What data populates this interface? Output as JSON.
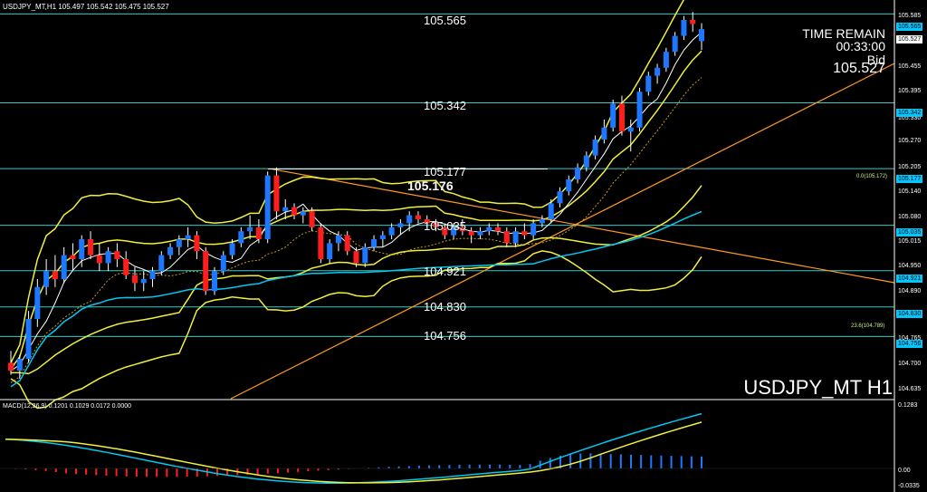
{
  "header": {
    "symbol_info": "USDJPY_MT,H1  105.497 105.542 105.475 105.527"
  },
  "timer": {
    "label": "TIME REMAIN",
    "value": "00:33:00"
  },
  "bid": {
    "label": "Bid",
    "value": "105.527"
  },
  "symbol_title": "USDJPY_MT H1",
  "macd": {
    "label": "MACD(12,26,9) 0.1201 0.1029 0.0172 0.0000",
    "axis_top": "0.1283",
    "axis_zero": "0.00",
    "axis_bottom": "-0.0335"
  },
  "levels": [
    {
      "price": 105.565,
      "label": "105.565"
    },
    {
      "price": 105.342,
      "label": "105.342"
    },
    {
      "price": 105.177,
      "label": "105.177"
    },
    {
      "price": 105.035,
      "label": "105.035"
    },
    {
      "price": 104.921,
      "label": "104.921"
    },
    {
      "price": 104.83,
      "label": "104.830"
    },
    {
      "price": 104.756,
      "label": "104.756"
    }
  ],
  "highlight_level": "105.176",
  "fibs": {
    "top": "0.0(105.172)",
    "mid": "23.6(104.789)"
  },
  "price_axis": {
    "ticks": [
      "105.585",
      "105.520",
      "105.455",
      "105.395",
      "105.330",
      "105.270",
      "105.205",
      "105.140",
      "105.080",
      "105.015",
      "104.950",
      "104.890",
      "104.765",
      "104.700",
      "104.635"
    ],
    "boxes": [
      {
        "label": "105.565",
        "kind": "level"
      },
      {
        "label": "105.527",
        "kind": "bid"
      },
      {
        "label": "105.342",
        "kind": "level"
      },
      {
        "label": "105.177",
        "kind": "level"
      },
      {
        "label": "105.035",
        "kind": "level"
      },
      {
        "label": "104.921",
        "kind": "level"
      },
      {
        "label": "104.830",
        "kind": "level"
      },
      {
        "label": "104.756",
        "kind": "level"
      }
    ]
  },
  "colors": {
    "background": "#000000",
    "bull": "#1e78ff",
    "bear": "#ff1e1e",
    "level_line": "#3cc8c8",
    "bands": "#f0f03c",
    "trend": "#ff9a20",
    "ma_cyan": "#00c8f0",
    "macd_line": "#00c8f0",
    "signal_line": "#f0f03c"
  },
  "chart_data": {
    "type": "candlestick",
    "symbol": "USDJPY_MT",
    "timeframe": "H1",
    "ylim": [
      104.6,
      105.6
    ],
    "ohlc": [
      [
        104.69,
        104.72,
        104.66,
        104.67
      ],
      [
        104.67,
        104.71,
        104.65,
        104.7
      ],
      [
        104.7,
        104.82,
        104.69,
        104.8
      ],
      [
        104.8,
        104.9,
        104.78,
        104.88
      ],
      [
        104.88,
        104.95,
        104.86,
        104.92
      ],
      [
        104.92,
        104.96,
        104.88,
        104.9
      ],
      [
        104.9,
        104.98,
        104.89,
        104.96
      ],
      [
        104.96,
        104.99,
        104.92,
        104.95
      ],
      [
        104.95,
        105.01,
        104.93,
        105.0
      ],
      [
        105.0,
        105.02,
        104.95,
        104.96
      ],
      [
        104.96,
        104.99,
        104.92,
        104.94
      ],
      [
        104.94,
        104.98,
        104.92,
        104.97
      ],
      [
        104.97,
        104.99,
        104.93,
        104.95
      ],
      [
        104.95,
        104.97,
        104.9,
        104.91
      ],
      [
        104.91,
        104.93,
        104.87,
        104.89
      ],
      [
        104.89,
        104.92,
        104.87,
        104.9
      ],
      [
        104.9,
        104.93,
        104.88,
        104.92
      ],
      [
        104.92,
        104.97,
        104.91,
        104.96
      ],
      [
        104.96,
        104.99,
        104.95,
        104.98
      ],
      [
        104.98,
        105.01,
        104.96,
        105.0
      ],
      [
        105.0,
        105.03,
        104.98,
        105.01
      ],
      [
        105.01,
        105.02,
        104.95,
        104.97
      ],
      [
        104.97,
        104.98,
        104.86,
        104.87
      ],
      [
        104.87,
        104.93,
        104.86,
        104.92
      ],
      [
        104.92,
        104.97,
        104.91,
        104.96
      ],
      [
        104.96,
        105.0,
        104.95,
        104.99
      ],
      [
        104.99,
        105.03,
        104.98,
        105.02
      ],
      [
        105.02,
        105.06,
        105.0,
        105.03
      ],
      [
        105.03,
        105.05,
        104.99,
        105.0
      ],
      [
        105.0,
        105.17,
        104.99,
        105.16
      ],
      [
        105.16,
        105.18,
        105.05,
        105.07
      ],
      [
        105.07,
        105.1,
        105.05,
        105.08
      ],
      [
        105.08,
        105.09,
        105.05,
        105.06
      ],
      [
        105.06,
        105.08,
        105.04,
        105.07
      ],
      [
        105.07,
        105.08,
        105.02,
        105.03
      ],
      [
        105.03,
        105.04,
        104.94,
        104.95
      ],
      [
        104.95,
        105.0,
        104.94,
        104.99
      ],
      [
        104.99,
        105.02,
        104.97,
        105.01
      ],
      [
        105.01,
        105.02,
        104.96,
        104.97
      ],
      [
        104.97,
        104.98,
        104.93,
        104.94
      ],
      [
        104.94,
        104.99,
        104.93,
        104.98
      ],
      [
        104.98,
        105.01,
        104.97,
        105.0
      ],
      [
        105.0,
        105.02,
        104.98,
        105.01
      ],
      [
        105.01,
        105.04,
        105.0,
        105.03
      ],
      [
        105.03,
        105.05,
        105.01,
        105.04
      ],
      [
        105.04,
        105.07,
        105.02,
        105.06
      ],
      [
        105.06,
        105.07,
        105.04,
        105.05
      ],
      [
        105.05,
        105.06,
        105.03,
        105.04
      ],
      [
        105.04,
        105.05,
        105.02,
        105.03
      ],
      [
        105.03,
        105.04,
        105.0,
        105.01
      ],
      [
        105.01,
        105.04,
        105.0,
        105.03
      ],
      [
        105.03,
        105.05,
        105.01,
        105.02
      ],
      [
        105.02,
        105.03,
        104.99,
        105.01
      ],
      [
        105.01,
        105.03,
        105.0,
        105.02
      ],
      [
        105.02,
        105.04,
        105.01,
        105.03
      ],
      [
        105.03,
        105.04,
        105.01,
        105.02
      ],
      [
        105.02,
        105.03,
        104.98,
        104.99
      ],
      [
        104.99,
        105.03,
        104.98,
        105.02
      ],
      [
        105.02,
        105.04,
        105.0,
        105.01
      ],
      [
        105.01,
        105.05,
        105.0,
        105.04
      ],
      [
        105.04,
        105.06,
        105.03,
        105.05
      ],
      [
        105.05,
        105.1,
        105.04,
        105.09
      ],
      [
        105.09,
        105.13,
        105.08,
        105.12
      ],
      [
        105.12,
        105.16,
        105.11,
        105.15
      ],
      [
        105.15,
        105.19,
        105.14,
        105.18
      ],
      [
        105.18,
        105.22,
        105.17,
        105.21
      ],
      [
        105.21,
        105.26,
        105.2,
        105.25
      ],
      [
        105.25,
        105.3,
        105.24,
        105.28
      ],
      [
        105.28,
        105.35,
        105.27,
        105.34
      ],
      [
        105.34,
        105.36,
        105.26,
        105.27
      ],
      [
        105.27,
        105.3,
        105.22,
        105.28
      ],
      [
        105.28,
        105.38,
        105.27,
        105.37
      ],
      [
        105.37,
        105.42,
        105.36,
        105.41
      ],
      [
        105.41,
        105.44,
        105.39,
        105.43
      ],
      [
        105.43,
        105.48,
        105.42,
        105.47
      ],
      [
        105.47,
        105.52,
        105.46,
        105.51
      ],
      [
        105.51,
        105.56,
        105.5,
        105.55
      ],
      [
        105.55,
        105.57,
        105.52,
        105.54
      ],
      [
        105.497,
        105.542,
        105.475,
        105.527
      ]
    ]
  }
}
